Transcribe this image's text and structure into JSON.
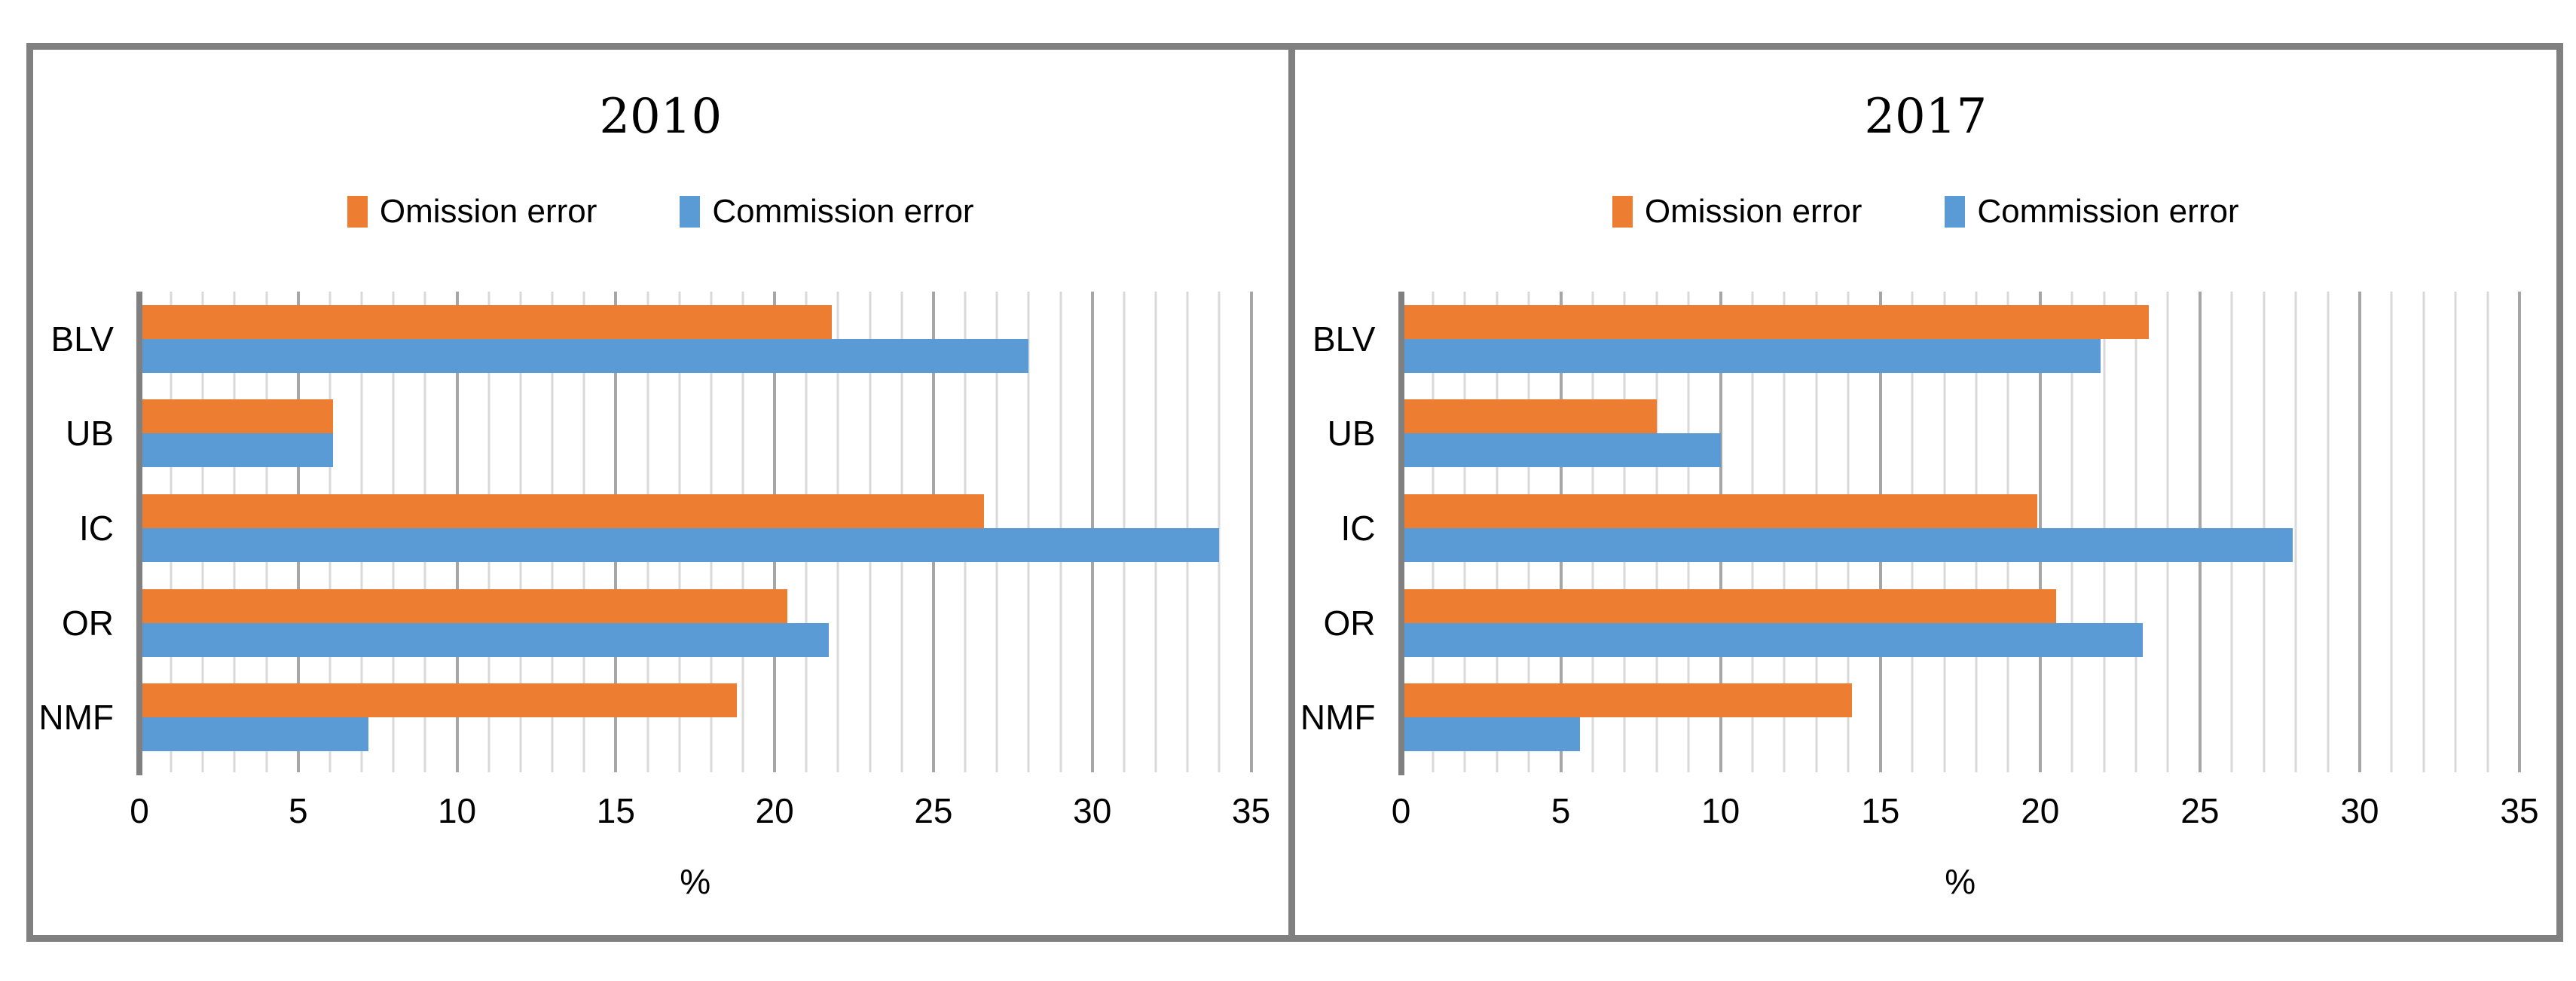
{
  "page": {
    "background": "#ffffff",
    "frame_border_color": "#808080"
  },
  "legend": {
    "omission": "Omission error",
    "commission": "Commission error"
  },
  "colors": {
    "omission": "#ED7D31",
    "commission": "#5B9BD5",
    "axis": "#808080",
    "grid_minor": "#D9D9D9",
    "grid_major": "#A6A6A6",
    "frame": "#808080"
  },
  "chart_data": [
    {
      "type": "bar",
      "orientation": "horizontal",
      "title": "2010",
      "categories": [
        "BLV",
        "UB",
        "IC",
        "OR",
        "NMF"
      ],
      "series": [
        {
          "name": "Omission error",
          "color": "#ED7D31",
          "values": [
            21.8,
            6.1,
            26.6,
            20.4,
            18.8
          ]
        },
        {
          "name": "Commission error",
          "color": "#5B9BD5",
          "values": [
            28.0,
            6.1,
            34.0,
            21.7,
            7.2
          ]
        }
      ],
      "xlabel": "%",
      "ylabel": "",
      "xlim": [
        0,
        35
      ],
      "xticks": [
        0,
        5,
        10,
        15,
        20,
        25,
        30,
        35
      ],
      "grid": "vertical minor every 1 unit, major every 5 units",
      "legend_position": "top"
    },
    {
      "type": "bar",
      "orientation": "horizontal",
      "title": "2017",
      "categories": [
        "BLV",
        "UB",
        "IC",
        "OR",
        "NMF"
      ],
      "series": [
        {
          "name": "Omission error",
          "color": "#ED7D31",
          "values": [
            23.4,
            8.0,
            19.9,
            20.5,
            14.1
          ]
        },
        {
          "name": "Commission error",
          "color": "#5B9BD5",
          "values": [
            21.9,
            10.0,
            27.9,
            23.2,
            5.6
          ]
        }
      ],
      "xlabel": "%",
      "ylabel": "",
      "xlim": [
        0,
        35
      ],
      "xticks": [
        0,
        5,
        10,
        15,
        20,
        25,
        30,
        35
      ],
      "grid": "vertical minor every 1 unit, major every 5 units",
      "legend_position": "top"
    }
  ]
}
